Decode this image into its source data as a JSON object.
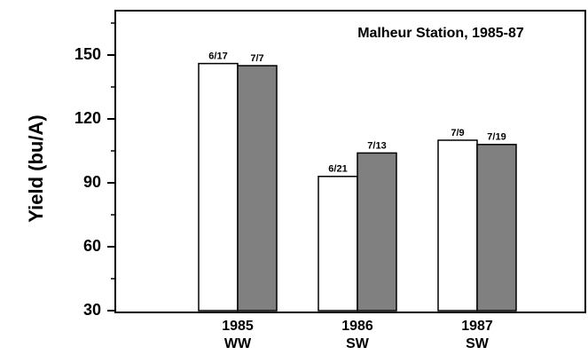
{
  "chart_data": {
    "type": "bar",
    "title": "Malheur Station, 1985-87",
    "ylabel": "Yield (bu/A)",
    "categories": [
      "1985",
      "1986",
      "1987"
    ],
    "category_types": [
      "WW",
      "SW",
      "SW"
    ],
    "series": [
      {
        "color": "#ffffff",
        "values": [
          146,
          93,
          110
        ],
        "dates": [
          "6/17",
          "6/21",
          "7/9"
        ]
      },
      {
        "color": "#808080",
        "values": [
          145,
          104,
          108
        ],
        "dates": [
          "7/7",
          "7/13",
          "7/19"
        ]
      }
    ],
    "ylim": [
      30,
      170
    ],
    "yticks": [
      30,
      60,
      90,
      120,
      150
    ],
    "minor_yticks": [
      45,
      75,
      105,
      135,
      165
    ]
  }
}
